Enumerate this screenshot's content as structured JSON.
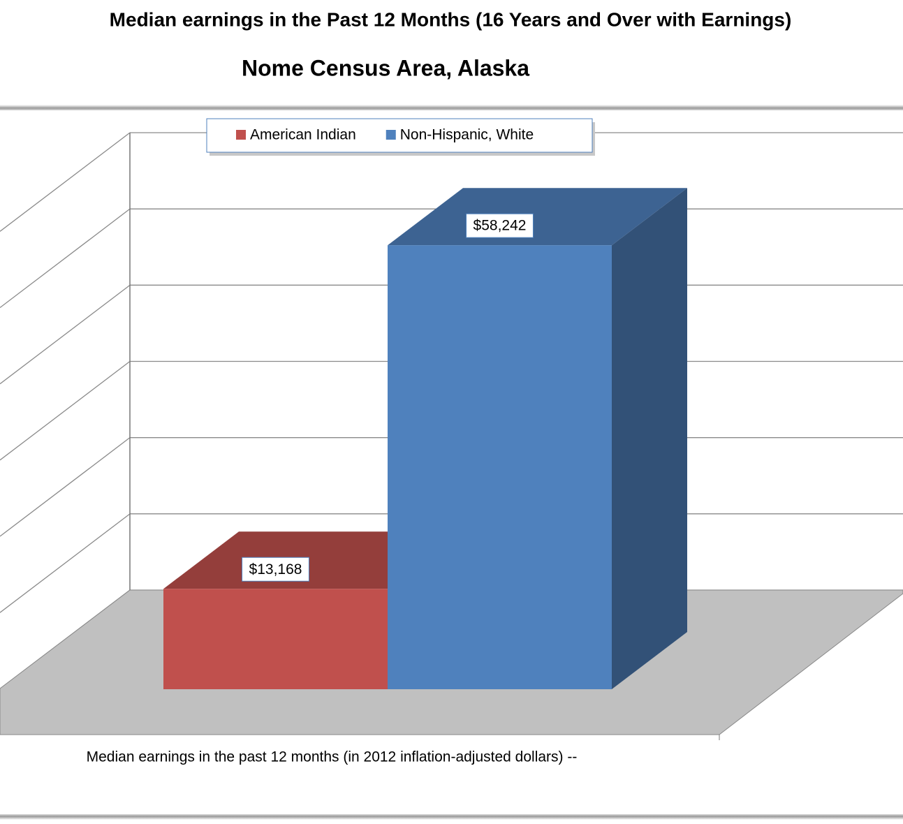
{
  "chart_data": {
    "type": "bar3d",
    "title": "Median earnings in the Past 12 Months (16 Years and Over with Earnings)",
    "subtitle": "Nome Census Area, Alaska",
    "categories": [
      "Median earnings in the past 12 months (in 2012 inflation-adjusted dollars) --"
    ],
    "series": [
      {
        "name": "American Indian",
        "color": "#c0504d",
        "values": [
          13168
        ],
        "value_labels": [
          "$13,168"
        ]
      },
      {
        "name": "Non-Hispanic, White",
        "color": "#4f81bd",
        "values": [
          58242
        ],
        "value_labels": [
          "$58,242"
        ]
      }
    ],
    "ylim": [
      0,
      60000
    ],
    "yticks": [
      0,
      10000,
      20000,
      30000,
      40000,
      50000,
      60000
    ],
    "grid": true,
    "legend": "top"
  }
}
